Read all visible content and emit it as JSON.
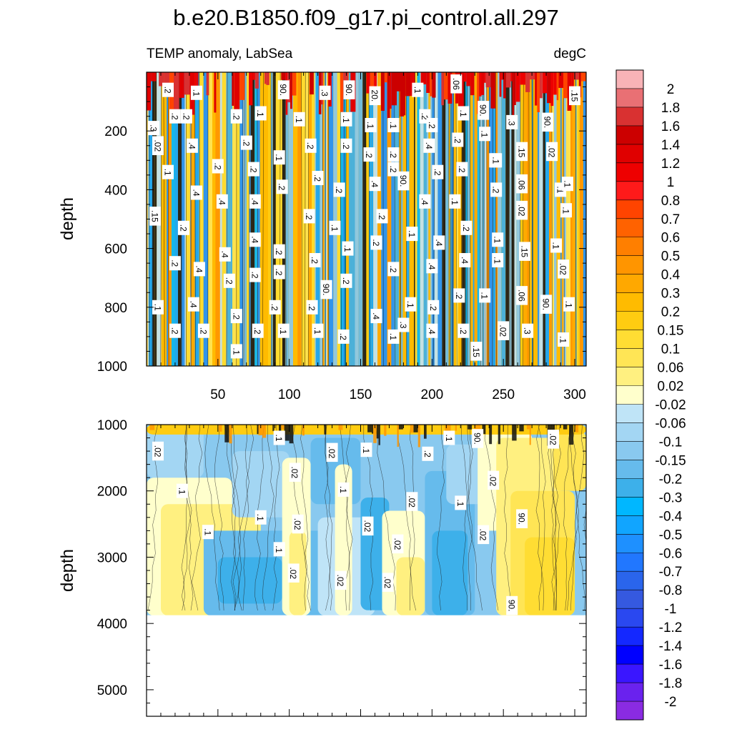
{
  "chart_data": {
    "type": "contour",
    "title": "b.e20.B1850.f09_g17.pi_control.all.297",
    "variable": "TEMP anomaly, LabSea",
    "units": "degC",
    "xlim": [
      0,
      308
    ],
    "x_ticks": [
      "50",
      "100",
      "150",
      "200",
      "250",
      "300"
    ],
    "panels": [
      {
        "id": "upper",
        "ylabel": "depth",
        "ylim": [
          0,
          1000
        ],
        "y_ticks": [
          "200",
          "400",
          "600",
          "800",
          "1000"
        ],
        "contour_labels": [
          {
            "text": ".2",
            "x": 15,
            "y": 60
          },
          {
            "text": ".1",
            "x": 35,
            "y": 70
          },
          {
            "text": ".2",
            "x": 20,
            "y": 150
          },
          {
            "text": ".3",
            "x": 5,
            "y": 190
          },
          {
            "text": ".02",
            "x": 8,
            "y": 250
          },
          {
            "text": ".1",
            "x": 15,
            "y": 340
          },
          {
            "text": ".15",
            "x": 6,
            "y": 490
          },
          {
            "text": ".2",
            "x": 26,
            "y": 530
          },
          {
            "text": ".2",
            "x": 20,
            "y": 650
          },
          {
            "text": ".1",
            "x": 8,
            "y": 800
          },
          {
            "text": ".2",
            "x": 20,
            "y": 880
          },
          {
            "text": ".2",
            "x": 28,
            "y": 150
          },
          {
            "text": ".4",
            "x": 32,
            "y": 250
          },
          {
            "text": ".4",
            "x": 35,
            "y": 410
          },
          {
            "text": ".4",
            "x": 37,
            "y": 670
          },
          {
            "text": ".4",
            "x": 33,
            "y": 790
          },
          {
            "text": ".2",
            "x": 40,
            "y": 880
          },
          {
            "text": ".2",
            "x": 50,
            "y": 320
          },
          {
            "text": ".4",
            "x": 53,
            "y": 440
          },
          {
            "text": ".4",
            "x": 55,
            "y": 620
          },
          {
            "text": ".2",
            "x": 58,
            "y": 710
          },
          {
            "text": ".2",
            "x": 63,
            "y": 830
          },
          {
            "text": ".1",
            "x": 63,
            "y": 950
          },
          {
            "text": ".2",
            "x": 63,
            "y": 150
          },
          {
            "text": ".1",
            "x": 80,
            "y": 140
          },
          {
            "text": ".2",
            "x": 70,
            "y": 240
          },
          {
            "text": ".2",
            "x": 75,
            "y": 330
          },
          {
            "text": ".4",
            "x": 76,
            "y": 440
          },
          {
            "text": ".4",
            "x": 76,
            "y": 570
          },
          {
            "text": ".2",
            "x": 76,
            "y": 690
          },
          {
            "text": ".2",
            "x": 78,
            "y": 880
          },
          {
            "text": ".2",
            "x": 95,
            "y": 390
          },
          {
            "text": ".2",
            "x": 93,
            "y": 610
          },
          {
            "text": ".2",
            "x": 93,
            "y": 680
          },
          {
            "text": ".2",
            "x": 90,
            "y": 800
          },
          {
            "text": ".1",
            "x": 96,
            "y": 880
          },
          {
            "text": ".1",
            "x": 93,
            "y": 290
          },
          {
            "text": "90.",
            "x": 96,
            "y": 60
          },
          {
            "text": ".1",
            "x": 107,
            "y": 160
          },
          {
            "text": ".2",
            "x": 114,
            "y": 490
          },
          {
            "text": ".2",
            "x": 115,
            "y": 250
          },
          {
            "text": ".2",
            "x": 116,
            "y": 800
          },
          {
            "text": ".2",
            "x": 118,
            "y": 640
          },
          {
            "text": ".2",
            "x": 120,
            "y": 360
          },
          {
            "text": ".1",
            "x": 120,
            "y": 880
          },
          {
            "text": ".3",
            "x": 125,
            "y": 70
          },
          {
            "text": ".1",
            "x": 132,
            "y": 530
          },
          {
            "text": "90.",
            "x": 126,
            "y": 740
          },
          {
            "text": ".2",
            "x": 135,
            "y": 400
          },
          {
            "text": ".2",
            "x": 138,
            "y": 900
          },
          {
            "text": ".1",
            "x": 140,
            "y": 160
          },
          {
            "text": ".2",
            "x": 140,
            "y": 250
          },
          {
            "text": ".1",
            "x": 141,
            "y": 600
          },
          {
            "text": ".2",
            "x": 140,
            "y": 710
          },
          {
            "text": "90.",
            "x": 142,
            "y": 60
          },
          {
            "text": ".1",
            "x": 157,
            "y": 180
          },
          {
            "text": ".2",
            "x": 156,
            "y": 280
          },
          {
            "text": ".4",
            "x": 160,
            "y": 380
          },
          {
            "text": ".2",
            "x": 161,
            "y": 580
          },
          {
            "text": ".4",
            "x": 161,
            "y": 830
          },
          {
            "text": "20.",
            "x": 160,
            "y": 80
          },
          {
            "text": ".2",
            "x": 165,
            "y": 490
          },
          {
            "text": ".1",
            "x": 173,
            "y": 180
          },
          {
            "text": ".2",
            "x": 173,
            "y": 280
          },
          {
            "text": ".2",
            "x": 173,
            "y": 330
          },
          {
            "text": ".2",
            "x": 173,
            "y": 670
          },
          {
            "text": ".1",
            "x": 173,
            "y": 900
          },
          {
            "text": "90.",
            "x": 180,
            "y": 370
          },
          {
            "text": ".3",
            "x": 180,
            "y": 860
          },
          {
            "text": ".1",
            "x": 186,
            "y": 550
          },
          {
            "text": ".1",
            "x": 185,
            "y": 790
          },
          {
            "text": ".1",
            "x": 190,
            "y": 60
          },
          {
            "text": ".2",
            "x": 195,
            "y": 150
          },
          {
            "text": ".4",
            "x": 195,
            "y": 440
          },
          {
            "text": ".4",
            "x": 198,
            "y": 250
          },
          {
            "text": ".2",
            "x": 200,
            "y": 180
          },
          {
            "text": ".4",
            "x": 200,
            "y": 660
          },
          {
            "text": ".4",
            "x": 205,
            "y": 580
          },
          {
            "text": ".2",
            "x": 201,
            "y": 800
          },
          {
            "text": ".4",
            "x": 200,
            "y": 880
          },
          {
            "text": ".2",
            "x": 204,
            "y": 340
          },
          {
            "text": ".06",
            "x": 217,
            "y": 40
          },
          {
            "text": ".1",
            "x": 216,
            "y": 440
          },
          {
            "text": ".2",
            "x": 218,
            "y": 230
          },
          {
            "text": ".2",
            "x": 221,
            "y": 330
          },
          {
            "text": ".2",
            "x": 222,
            "y": 880
          },
          {
            "text": ".2",
            "x": 219,
            "y": 760
          },
          {
            "text": ".1",
            "x": 222,
            "y": 140
          },
          {
            "text": ".4",
            "x": 223,
            "y": 640
          },
          {
            "text": ".2",
            "x": 224,
            "y": 530
          },
          {
            "text": "90.",
            "x": 236,
            "y": 130
          },
          {
            "text": ".1",
            "x": 237,
            "y": 210
          },
          {
            "text": ".15",
            "x": 231,
            "y": 950
          },
          {
            "text": ".1",
            "x": 237,
            "y": 760
          },
          {
            "text": ".3",
            "x": 256,
            "y": 170
          },
          {
            "text": ".1",
            "x": 244,
            "y": 300
          },
          {
            "text": ".1",
            "x": 246,
            "y": 570
          },
          {
            "text": ".2",
            "x": 245,
            "y": 400
          },
          {
            "text": ".1",
            "x": 246,
            "y": 640
          },
          {
            "text": ".1",
            "x": 245,
            "y": 300
          },
          {
            "text": ".02",
            "x": 250,
            "y": 880
          },
          {
            "text": ".15",
            "x": 263,
            "y": 270
          },
          {
            "text": ".06",
            "x": 263,
            "y": 380
          },
          {
            "text": ".02",
            "x": 263,
            "y": 470
          },
          {
            "text": ".15",
            "x": 265,
            "y": 610
          },
          {
            "text": ".06",
            "x": 263,
            "y": 760
          },
          {
            "text": ".3",
            "x": 267,
            "y": 880
          },
          {
            "text": "90.",
            "x": 281,
            "y": 170
          },
          {
            "text": ".02",
            "x": 284,
            "y": 270
          },
          {
            "text": ".1",
            "x": 290,
            "y": 400
          },
          {
            "text": ".1",
            "x": 294,
            "y": 470
          },
          {
            "text": ".1",
            "x": 287,
            "y": 590
          },
          {
            "text": ".02",
            "x": 292,
            "y": 670
          },
          {
            "text": "90.",
            "x": 280,
            "y": 790
          },
          {
            "text": ".1",
            "x": 296,
            "y": 790
          },
          {
            "text": ".1",
            "x": 292,
            "y": 910
          },
          {
            "text": ".15",
            "x": 300,
            "y": 80
          },
          {
            "text": ".1",
            "x": 295,
            "y": 380
          }
        ]
      },
      {
        "id": "lower",
        "ylabel": "depth",
        "ylim": [
          1000,
          5400
        ],
        "y_ticks": [
          "1000",
          "2000",
          "3000",
          "4000",
          "5000"
        ],
        "data_bottom_depth": 3880,
        "contour_labels": [
          {
            "text": ".02",
            "x": 8,
            "y": 1400
          },
          {
            "text": ".1",
            "x": 25,
            "y": 2000
          },
          {
            "text": ".1",
            "x": 43,
            "y": 2620
          },
          {
            "text": ".1",
            "x": 93,
            "y": 1200
          },
          {
            "text": ".1",
            "x": 80,
            "y": 2400
          },
          {
            "text": ".1",
            "x": 93,
            "y": 2880
          },
          {
            "text": ".02",
            "x": 104,
            "y": 1720
          },
          {
            "text": ".02",
            "x": 106,
            "y": 2500
          },
          {
            "text": ".02",
            "x": 103,
            "y": 3240
          },
          {
            "text": ".02",
            "x": 130,
            "y": 1420
          },
          {
            "text": ".1",
            "x": 138,
            "y": 1980
          },
          {
            "text": ".02",
            "x": 136,
            "y": 3350
          },
          {
            "text": ".1",
            "x": 154,
            "y": 1380
          },
          {
            "text": ".02",
            "x": 155,
            "y": 2530
          },
          {
            "text": ".02",
            "x": 169,
            "y": 3380
          },
          {
            "text": ".02",
            "x": 176,
            "y": 2800
          },
          {
            "text": ".02",
            "x": 186,
            "y": 2160
          },
          {
            "text": ".2",
            "x": 197,
            "y": 1440
          },
          {
            "text": ".1",
            "x": 212,
            "y": 1200
          },
          {
            "text": ".1",
            "x": 220,
            "y": 2180
          },
          {
            "text": ".02",
            "x": 236,
            "y": 2660
          },
          {
            "text": "90.",
            "x": 232,
            "y": 1210
          },
          {
            "text": ".02",
            "x": 243,
            "y": 1840
          },
          {
            "text": "90.",
            "x": 263,
            "y": 2420
          },
          {
            "text": "90.",
            "x": 256,
            "y": 3730
          },
          {
            "text": ".02",
            "x": 285,
            "y": 1220
          }
        ]
      }
    ],
    "colorbar": {
      "labels": [
        "2",
        "1.8",
        "1.6",
        "1.4",
        "1.2",
        "1",
        "0.8",
        "0.7",
        "0.6",
        "0.5",
        "0.4",
        "0.3",
        "0.2",
        "0.15",
        "0.1",
        "0.06",
        "0.02",
        "-0.02",
        "-0.06",
        "-0.1",
        "-0.15",
        "-0.2",
        "-0.3",
        "-0.4",
        "-0.5",
        "-0.6",
        "-0.7",
        "-0.8",
        "-1",
        "-1.2",
        "-1.4",
        "-1.6",
        "-1.8",
        "-2"
      ],
      "colors": [
        "#f8b3b7",
        "#e97074",
        "#d93131",
        "#cc0000",
        "#e00000",
        "#ee0000",
        "#ff1a1a",
        "#ff4400",
        "#ff6200",
        "#ff7f00",
        "#ff9500",
        "#ffa800",
        "#ffbb00",
        "#ffcc11",
        "#ffdd33",
        "#ffe555",
        "#fff080",
        "#ffffcc",
        "#bfe4f7",
        "#a3d6f3",
        "#89c9ef",
        "#66bbec",
        "#3db0ea",
        "#00b7ff",
        "#11a5ff",
        "#1e90ff",
        "#2177ff",
        "#2a65ec",
        "#3559e0",
        "#2a48f0",
        "#1428ff",
        "#0000ff",
        "#3a16ff",
        "#6a22ee",
        "#8a2be2"
      ]
    }
  }
}
